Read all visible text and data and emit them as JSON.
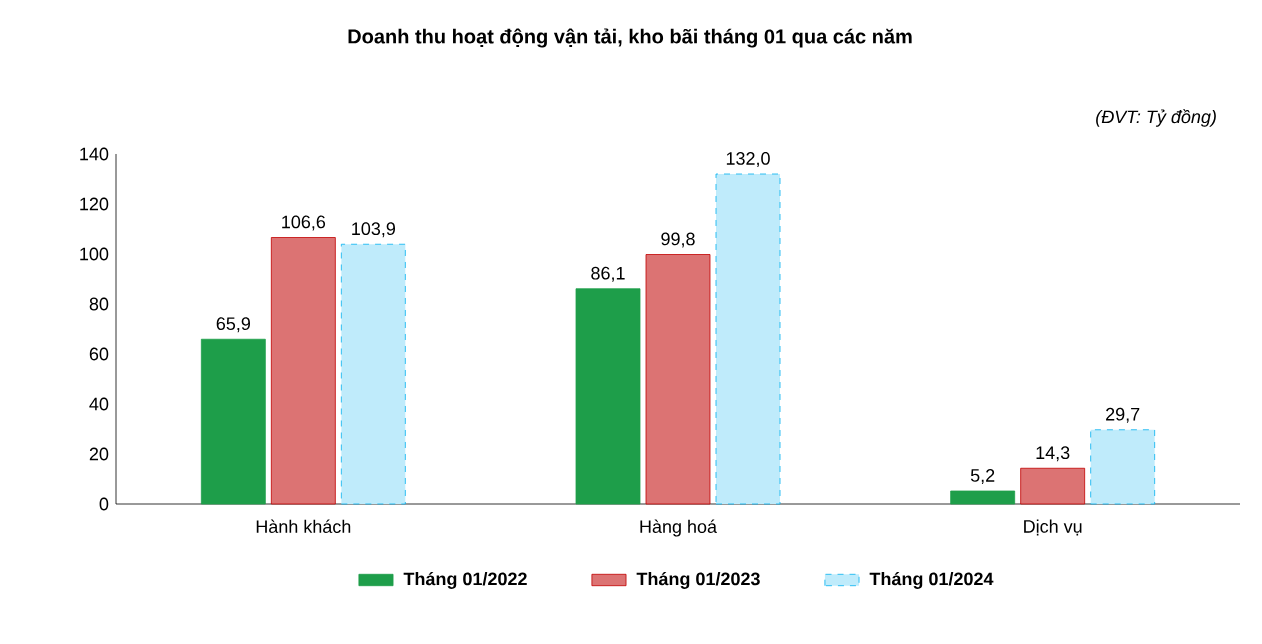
{
  "chart_data": {
    "type": "bar",
    "title": "Doanh thu hoạt động vận tải, kho bãi tháng 01 qua các năm",
    "annotations": [
      "(ĐVT: Tỷ đồng)"
    ],
    "categories": [
      "Hành khách",
      "Hàng hoá",
      "Dịch vụ"
    ],
    "series": [
      {
        "name": "Tháng 01/2022",
        "color": "#1e9e4a",
        "values": [
          65.9,
          86.1,
          5.2
        ],
        "value_labels": [
          "65,9",
          "86,1",
          "5,2"
        ]
      },
      {
        "name": "Tháng 01/2023",
        "color": "#c00000",
        "values": [
          106.6,
          99.8,
          14.3
        ],
        "value_labels": [
          "106,6",
          "99,8",
          "14,3"
        ]
      },
      {
        "name": "Tháng 01/2024",
        "color": "#00b0f0",
        "values": [
          103.9,
          132.0,
          29.7
        ],
        "value_labels": [
          "103,9",
          "132,0",
          "29,7"
        ]
      }
    ],
    "ylim": [
      0,
      140
    ],
    "yticks": [
      0,
      20,
      40,
      60,
      80,
      100,
      120,
      140
    ],
    "grid": false,
    "legend": "bottom"
  }
}
